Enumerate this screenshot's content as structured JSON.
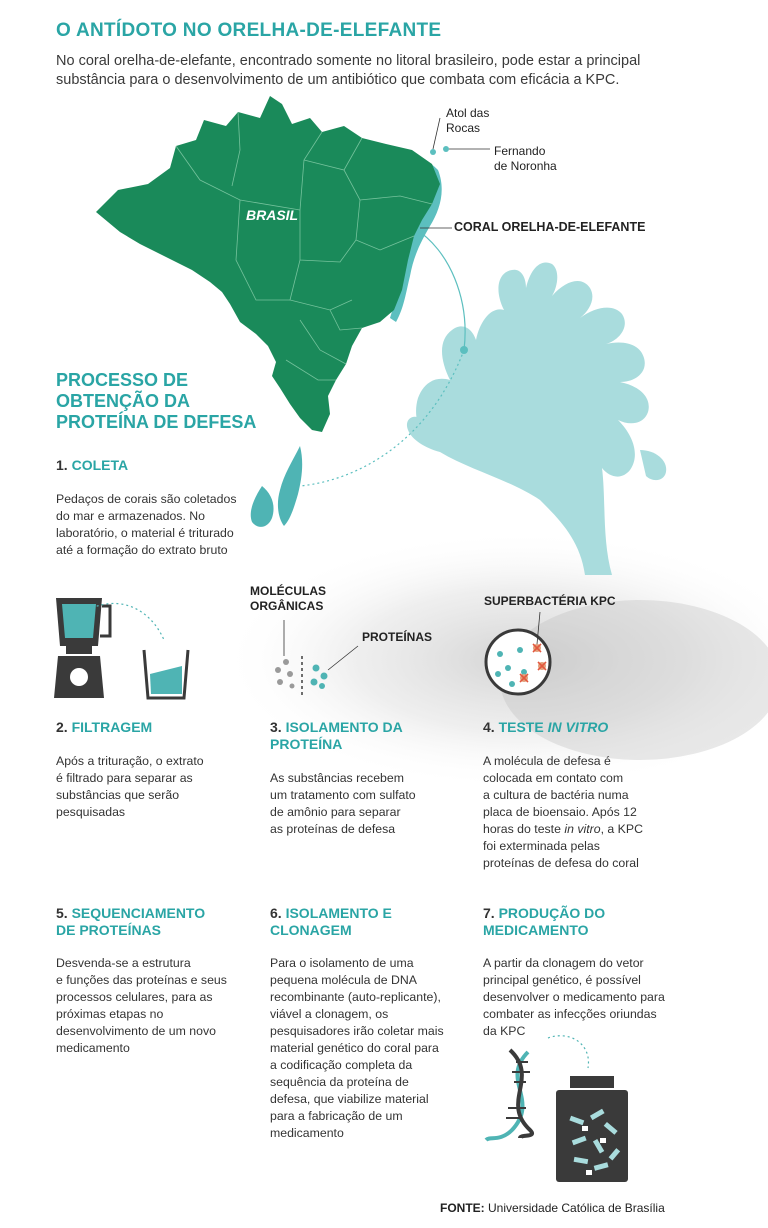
{
  "title": "O ANTÍDOTO NO ORELHA-DE-ELEFANTE",
  "intro": "No coral orelha-de-elefante, encontrado somente no litoral brasileiro, pode estar a principal substância para o desenvolvimento de um antibiótico que combata com eficácia a KPC.",
  "map": {
    "country_label": "BRASIL",
    "atol_line1": "Atol das",
    "atol_line2": "Rocas",
    "fernando_line1": "Fernando",
    "fernando_line2": "de Noronha",
    "coral_label": "CORAL ORELHA-DE-ELEFANTE",
    "colors": {
      "land": "#1a8a5a",
      "coast": "#5cbfbf",
      "coral": "#a9dcdd",
      "accent": "#2aa5a5"
    }
  },
  "process_title_lines": [
    "PROCESSO DE",
    "OBTENÇÃO DA",
    "PROTEÍNA DE DEFESA"
  ],
  "diagram_labels": {
    "molecules_line1": "MOLÉCULAS",
    "molecules_line2": "ORGÂNICAS",
    "proteins": "PROTEÍNAS",
    "superbacteria": "SUPERBACTÉRIA KPC"
  },
  "steps": [
    {
      "num": "1.",
      "title": "COLETA",
      "text_lines": [
        "Pedaços de corais são coletados",
        "do mar e armazenados. No",
        "laboratório, o material é triturado",
        "até a formação do extrato bruto"
      ]
    },
    {
      "num": "2.",
      "title": "FILTRAGEM",
      "text_lines": [
        "Após a trituração, o extrato",
        "é filtrado para separar as",
        "substâncias que serão",
        "pesquisadas"
      ]
    },
    {
      "num": "3.",
      "title_line1": "ISOLAMENTO DA",
      "title_line2": "PROTEÍNA",
      "text_lines": [
        "As substâncias recebem",
        "um tratamento com sulfato",
        "de amônio para separar",
        "as proteínas de defesa"
      ]
    },
    {
      "num": "4.",
      "title_a": "TESTE",
      "title_b": "IN VITRO",
      "text_lines": [
        "A molécula de defesa é",
        "colocada em contato com",
        "a cultura de bactéria numa",
        "placa de bioensaio. Após 12"
      ],
      "text_l5a": "horas do teste ",
      "text_l5b": "in vitro",
      "text_l5c": ", a KPC",
      "text_lines_end": [
        "foi exterminada pelas",
        "proteínas de defesa do coral"
      ]
    },
    {
      "num": "5.",
      "title_line1": "SEQUENCIAMENTO",
      "title_line2": "DE PROTEÍNAS",
      "text_lines": [
        "Desvenda-se a estrutura",
        "e funções das proteínas e seus",
        "processos celulares, para as",
        "próximas etapas no",
        "desenvolvimento de um novo",
        "medicamento"
      ]
    },
    {
      "num": "6.",
      "title_line1": "ISOLAMENTO E",
      "title_line2": "CLONAGEM",
      "text_lines": [
        "Para o isolamento de uma",
        "pequena molécula de DNA",
        "recombinante (auto-replicante),",
        "viável a clonagem, os",
        "pesquisadores irão coletar mais",
        "material genético do coral para",
        "a codificação completa da",
        "sequência da proteína de",
        "defesa, que viabilize material",
        "para a fabricação de um",
        "medicamento"
      ]
    },
    {
      "num": "7.",
      "title_line1": "PRODUÇÃO DO",
      "title_line2": "MEDICAMENTO",
      "text_lines": [
        "A partir da clonagem do vetor",
        "principal genético, é possível",
        "desenvolver o medicamento para",
        "combater as infecções oriundas",
        "da KPC"
      ]
    }
  ],
  "source_label": "FONTE:",
  "source_text": "Universidade Católica de Brasília"
}
